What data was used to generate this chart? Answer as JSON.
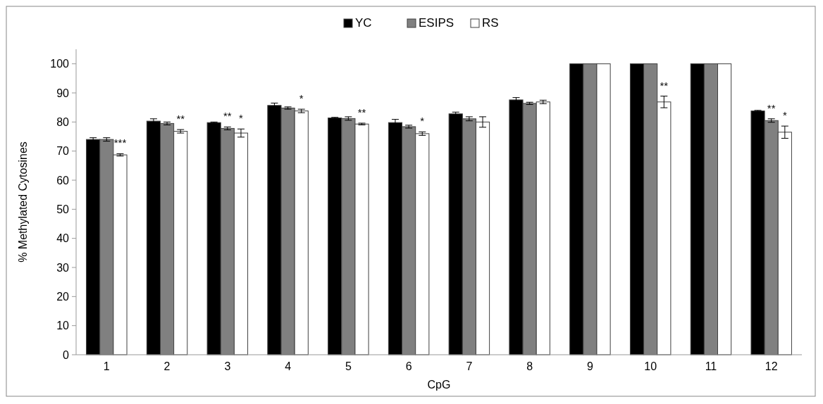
{
  "chart_data": {
    "type": "bar",
    "xlabel": "CpG",
    "ylabel": "% Methylated Cytosines",
    "categories": [
      "1",
      "2",
      "3",
      "4",
      "5",
      "6",
      "7",
      "8",
      "9",
      "10",
      "11",
      "12"
    ],
    "series": [
      {
        "name": "YC",
        "color": "#000000",
        "values": [
          74,
          80.3,
          79.8,
          85.7,
          81.4,
          79.8,
          82.8,
          87.6,
          100,
          100,
          100,
          83.8
        ],
        "errors": [
          0.6,
          0.8,
          0.2,
          0.8,
          0.2,
          1.1,
          0.6,
          0.8,
          null,
          null,
          null,
          0.2
        ]
      },
      {
        "name": "ESIPS",
        "color": "#808080",
        "values": [
          74,
          79.5,
          77.8,
          84.8,
          81.2,
          78.4,
          81.1,
          86.4,
          100,
          100,
          100,
          80.5
        ],
        "errors": [
          0.6,
          0.5,
          0.5,
          0.4,
          0.6,
          0.5,
          0.7,
          0.4,
          null,
          null,
          null,
          0.6
        ],
        "value_labels": [
          null,
          null,
          "**",
          null,
          null,
          null,
          null,
          null,
          null,
          null,
          null,
          "**"
        ]
      },
      {
        "name": "RS",
        "color": "#ffffff",
        "values": [
          68.7,
          76.8,
          76.2,
          83.8,
          79.3,
          76.0,
          80.0,
          86.9,
          100,
          86.9,
          100,
          76.5
        ],
        "errors": [
          0.4,
          0.6,
          1.4,
          0.6,
          0.3,
          0.6,
          1.8,
          0.6,
          null,
          2.0,
          null,
          2.1
        ],
        "value_labels": [
          "***",
          "**",
          "*",
          "*",
          "**",
          "*",
          null,
          null,
          null,
          "**",
          null,
          "*"
        ]
      }
    ],
    "ylim": [
      0,
      105
    ],
    "yticks": [
      0,
      10,
      20,
      30,
      40,
      50,
      60,
      70,
      80,
      90,
      100
    ],
    "grid": false,
    "legend": "top"
  }
}
